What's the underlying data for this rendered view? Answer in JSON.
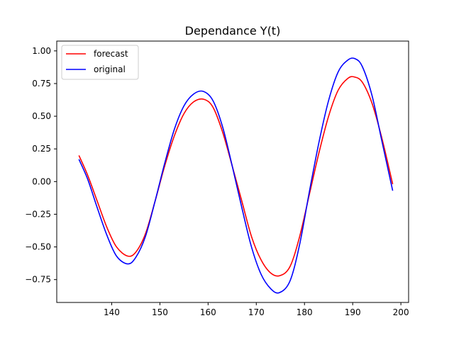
{
  "chart_data": {
    "type": "line",
    "title": "Dependance Y(t)",
    "xlabel": "",
    "ylabel": "",
    "xlim": [
      128.6,
      201.6
    ],
    "ylim": [
      -0.925,
      1.075
    ],
    "xticks": [
      140,
      150,
      160,
      170,
      180,
      190,
      200
    ],
    "xtick_labels": [
      "140",
      "150",
      "160",
      "170",
      "180",
      "190",
      "200"
    ],
    "yticks": [
      -0.75,
      -0.5,
      -0.25,
      0.0,
      0.25,
      0.5,
      0.75,
      1.0
    ],
    "ytick_labels": [
      "−0.75",
      "−0.50",
      "−0.25",
      "0.00",
      "0.25",
      "0.50",
      "0.75",
      "1.00"
    ],
    "grid": false,
    "legend_position": "top-left",
    "series": [
      {
        "name": "forecast",
        "color": "#ff0000",
        "x": [
          133.2,
          135,
          137,
          139,
          141,
          143.3,
          145,
          147,
          149,
          151,
          153,
          155,
          157,
          159.1,
          161,
          163,
          165,
          167,
          169,
          171,
          173,
          174.9,
          177,
          179,
          181,
          183,
          185,
          187,
          189,
          190.4,
          192,
          194,
          196,
          198.3
        ],
        "y": [
          0.2,
          0.05,
          -0.15,
          -0.35,
          -0.5,
          -0.57,
          -0.54,
          -0.4,
          -0.15,
          0.12,
          0.35,
          0.52,
          0.61,
          0.63,
          0.57,
          0.38,
          0.12,
          -0.15,
          -0.42,
          -0.6,
          -0.7,
          -0.72,
          -0.65,
          -0.42,
          -0.1,
          0.22,
          0.5,
          0.7,
          0.79,
          0.8,
          0.76,
          0.6,
          0.34,
          -0.02
        ]
      },
      {
        "name": "original",
        "color": "#0000ff",
        "x": [
          133.2,
          135,
          137,
          139,
          141,
          143.3,
          145,
          147,
          149,
          151,
          153,
          155,
          157,
          159,
          161,
          163,
          165,
          167,
          169,
          171,
          173,
          174.8,
          177,
          179,
          181,
          183,
          185,
          187,
          189,
          190.5,
          192,
          194,
          196,
          198.3
        ],
        "y": [
          0.17,
          0.02,
          -0.2,
          -0.41,
          -0.57,
          -0.63,
          -0.58,
          -0.42,
          -0.15,
          0.14,
          0.4,
          0.58,
          0.67,
          0.69,
          0.62,
          0.42,
          0.12,
          -0.2,
          -0.5,
          -0.71,
          -0.82,
          -0.85,
          -0.76,
          -0.48,
          -0.08,
          0.3,
          0.62,
          0.84,
          0.93,
          0.94,
          0.88,
          0.66,
          0.32,
          -0.07
        ]
      }
    ]
  }
}
